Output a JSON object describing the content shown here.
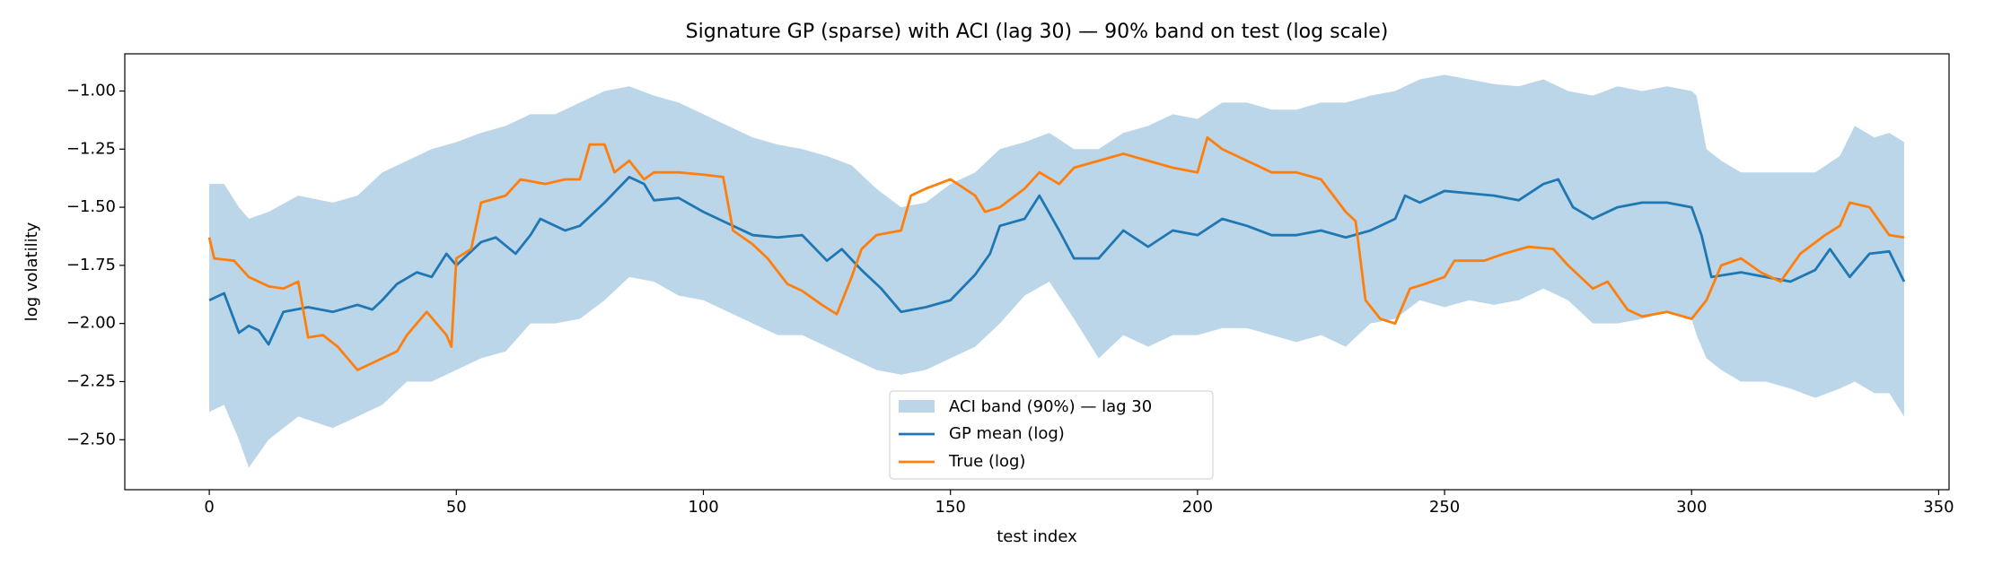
{
  "chart_data": {
    "type": "line",
    "title": "Signature GP (sparse) with ACI (lag 30) — 90% band on test (log scale)",
    "xlabel": "test index",
    "ylabel": "log volatility",
    "xlim": [
      -17.1,
      352.1
    ],
    "ylim": [
      -2.715,
      -0.84
    ],
    "xticks": [
      0,
      50,
      100,
      150,
      200,
      250,
      300,
      350
    ],
    "yticks": [
      {
        "value": -2.5,
        "label": "−2.50"
      },
      {
        "value": -2.25,
        "label": "−2.25"
      },
      {
        "value": -2.0,
        "label": "−2.00"
      },
      {
        "value": -1.75,
        "label": "−1.75"
      },
      {
        "value": -1.5,
        "label": "−1.50"
      },
      {
        "value": -1.25,
        "label": "−1.25"
      },
      {
        "value": -1.0,
        "label": "−1.00"
      }
    ],
    "grid": false,
    "legend_loc": "lower center",
    "band": {
      "name": "ACI band (90%) — lag 30",
      "color": "#1f77b4",
      "alpha": 0.3,
      "x": [
        0,
        3,
        6,
        8,
        12,
        18,
        25,
        30,
        35,
        40,
        45,
        50,
        55,
        60,
        65,
        70,
        75,
        80,
        85,
        90,
        95,
        100,
        105,
        110,
        115,
        120,
        125,
        130,
        135,
        140,
        145,
        150,
        155,
        160,
        165,
        170,
        175,
        180,
        185,
        190,
        195,
        200,
        205,
        210,
        215,
        220,
        225,
        230,
        235,
        240,
        245,
        250,
        255,
        260,
        265,
        270,
        275,
        280,
        285,
        290,
        295,
        300,
        301,
        303,
        306,
        310,
        315,
        320,
        325,
        330,
        333,
        337,
        340,
        343
      ],
      "upper": [
        -1.4,
        -1.4,
        -1.5,
        -1.55,
        -1.52,
        -1.45,
        -1.48,
        -1.45,
        -1.35,
        -1.3,
        -1.25,
        -1.22,
        -1.18,
        -1.15,
        -1.1,
        -1.1,
        -1.05,
        -1.0,
        -0.98,
        -1.02,
        -1.05,
        -1.1,
        -1.15,
        -1.2,
        -1.23,
        -1.25,
        -1.28,
        -1.32,
        -1.42,
        -1.5,
        -1.48,
        -1.4,
        -1.35,
        -1.25,
        -1.22,
        -1.18,
        -1.25,
        -1.25,
        -1.18,
        -1.15,
        -1.1,
        -1.12,
        -1.05,
        -1.05,
        -1.08,
        -1.08,
        -1.05,
        -1.05,
        -1.02,
        -1.0,
        -0.95,
        -0.93,
        -0.95,
        -0.97,
        -0.98,
        -0.95,
        -1.0,
        -1.02,
        -0.98,
        -1.0,
        -0.98,
        -1.0,
        -1.02,
        -1.25,
        -1.3,
        -1.35,
        -1.35,
        -1.35,
        -1.35,
        -1.28,
        -1.15,
        -1.2,
        -1.18,
        -1.22
      ],
      "lower": [
        -2.38,
        -2.35,
        -2.5,
        -2.62,
        -2.5,
        -2.4,
        -2.45,
        -2.4,
        -2.35,
        -2.25,
        -2.25,
        -2.2,
        -2.15,
        -2.12,
        -2.0,
        -2.0,
        -1.98,
        -1.9,
        -1.8,
        -1.82,
        -1.88,
        -1.9,
        -1.95,
        -2.0,
        -2.05,
        -2.05,
        -2.1,
        -2.15,
        -2.2,
        -2.22,
        -2.2,
        -2.15,
        -2.1,
        -2.0,
        -1.88,
        -1.82,
        -1.98,
        -2.15,
        -2.05,
        -2.1,
        -2.05,
        -2.05,
        -2.02,
        -2.02,
        -2.05,
        -2.08,
        -2.05,
        -2.1,
        -2.0,
        -1.98,
        -1.9,
        -1.93,
        -1.9,
        -1.92,
        -1.9,
        -1.85,
        -1.9,
        -2.0,
        -2.0,
        -1.98,
        -1.95,
        -1.98,
        -2.05,
        -2.15,
        -2.2,
        -2.25,
        -2.25,
        -2.28,
        -2.32,
        -2.28,
        -2.25,
        -2.3,
        -2.3,
        -2.4
      ]
    },
    "series": [
      {
        "name": "GP mean (log)",
        "color": "#1f77b4",
        "x": [
          0,
          3,
          6,
          8,
          10,
          12,
          15,
          20,
          25,
          30,
          33,
          35,
          38,
          42,
          45,
          48,
          50,
          55,
          58,
          62,
          65,
          67,
          72,
          75,
          80,
          85,
          88,
          90,
          95,
          100,
          105,
          110,
          115,
          120,
          125,
          128,
          132,
          136,
          140,
          145,
          150,
          155,
          158,
          160,
          165,
          168,
          172,
          175,
          180,
          185,
          190,
          195,
          200,
          205,
          210,
          215,
          220,
          225,
          230,
          235,
          240,
          242,
          245,
          250,
          255,
          260,
          265,
          270,
          273,
          276,
          280,
          285,
          290,
          295,
          300,
          302,
          304,
          310,
          315,
          320,
          325,
          328,
          332,
          336,
          340,
          343
        ],
        "values": [
          -1.9,
          -1.87,
          -2.04,
          -2.01,
          -2.03,
          -2.09,
          -1.95,
          -1.93,
          -1.95,
          -1.92,
          -1.94,
          -1.9,
          -1.83,
          -1.78,
          -1.8,
          -1.7,
          -1.75,
          -1.65,
          -1.63,
          -1.7,
          -1.62,
          -1.55,
          -1.6,
          -1.58,
          -1.48,
          -1.37,
          -1.4,
          -1.47,
          -1.46,
          -1.52,
          -1.57,
          -1.62,
          -1.63,
          -1.62,
          -1.73,
          -1.68,
          -1.77,
          -1.85,
          -1.95,
          -1.93,
          -1.9,
          -1.79,
          -1.7,
          -1.58,
          -1.55,
          -1.45,
          -1.6,
          -1.72,
          -1.72,
          -1.6,
          -1.67,
          -1.6,
          -1.62,
          -1.55,
          -1.58,
          -1.62,
          -1.62,
          -1.6,
          -1.63,
          -1.6,
          -1.55,
          -1.45,
          -1.48,
          -1.43,
          -1.44,
          -1.45,
          -1.47,
          -1.4,
          -1.38,
          -1.5,
          -1.55,
          -1.5,
          -1.48,
          -1.48,
          -1.5,
          -1.62,
          -1.8,
          -1.78,
          -1.8,
          -1.82,
          -1.77,
          -1.68,
          -1.8,
          -1.7,
          -1.69,
          -1.82
        ]
      },
      {
        "name": "True (log)",
        "color": "#ff7f0e",
        "x": [
          0,
          1,
          5,
          8,
          12,
          15,
          18,
          20,
          23,
          26,
          30,
          33,
          38,
          40,
          44,
          48,
          49,
          50,
          53,
          55,
          60,
          63,
          68,
          72,
          75,
          77,
          80,
          82,
          85,
          88,
          90,
          95,
          100,
          104,
          106,
          110,
          113,
          117,
          120,
          124,
          127,
          130,
          132,
          135,
          140,
          142,
          145,
          150,
          155,
          157,
          160,
          165,
          168,
          172,
          175,
          180,
          185,
          190,
          195,
          200,
          202,
          205,
          210,
          215,
          220,
          225,
          230,
          232,
          234,
          237,
          240,
          243,
          246,
          250,
          252,
          258,
          262,
          267,
          272,
          275,
          280,
          283,
          287,
          290,
          295,
          300,
          303,
          306,
          310,
          314,
          318,
          322,
          327,
          330,
          332,
          336,
          340,
          343
        ],
        "values": [
          -1.63,
          -1.72,
          -1.73,
          -1.8,
          -1.84,
          -1.85,
          -1.82,
          -2.06,
          -2.05,
          -2.1,
          -2.2,
          -2.17,
          -2.12,
          -2.05,
          -1.95,
          -2.05,
          -2.1,
          -1.72,
          -1.68,
          -1.48,
          -1.45,
          -1.38,
          -1.4,
          -1.38,
          -1.38,
          -1.23,
          -1.23,
          -1.35,
          -1.3,
          -1.38,
          -1.35,
          -1.35,
          -1.36,
          -1.37,
          -1.6,
          -1.66,
          -1.72,
          -1.83,
          -1.86,
          -1.92,
          -1.96,
          -1.8,
          -1.68,
          -1.62,
          -1.6,
          -1.45,
          -1.42,
          -1.38,
          -1.45,
          -1.52,
          -1.5,
          -1.42,
          -1.35,
          -1.4,
          -1.33,
          -1.3,
          -1.27,
          -1.3,
          -1.33,
          -1.35,
          -1.2,
          -1.25,
          -1.3,
          -1.35,
          -1.35,
          -1.38,
          -1.52,
          -1.56,
          -1.9,
          -1.98,
          -2.0,
          -1.85,
          -1.83,
          -1.8,
          -1.73,
          -1.73,
          -1.7,
          -1.67,
          -1.68,
          -1.75,
          -1.85,
          -1.82,
          -1.94,
          -1.97,
          -1.95,
          -1.98,
          -1.9,
          -1.75,
          -1.72,
          -1.78,
          -1.82,
          -1.7,
          -1.62,
          -1.58,
          -1.48,
          -1.5,
          -1.62,
          -1.63
        ]
      }
    ]
  }
}
